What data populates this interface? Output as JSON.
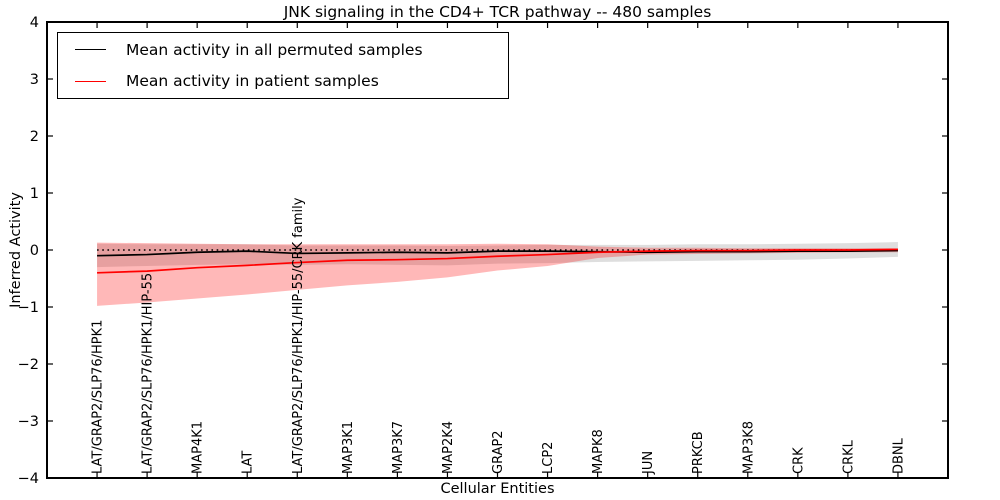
{
  "figure": {
    "title": "JNK signaling in the CD4+ TCR pathway -- 480 samples",
    "xlabel": "Cellular Entities",
    "ylabel": "Inferred Activity"
  },
  "chart_data": {
    "type": "line",
    "title": "JNK signaling in the CD4+ TCR pathway -- 480 samples",
    "xlabel": "Cellular Entities",
    "ylabel": "Inferred Activity",
    "ylim": [
      -4,
      4
    ],
    "y_ticks": [
      4,
      3,
      2,
      1,
      0,
      -1,
      -2,
      -3,
      -4
    ],
    "grid": false,
    "zero_line": 0,
    "legend_position": "upper left",
    "categories": [
      "LAT/GRAP2/SLP76/HPK1",
      "LAT/GRAP2/SLP76/HPK1/HIP-55",
      "MAP4K1",
      "LAT",
      "LAT/GRAP2/SLP76/HPK1/HIP-55/CRK family",
      "MAP3K1",
      "MAP3K7",
      "MAP2K4",
      "GRAP2",
      "LCP2",
      "MAPK8",
      "JUN",
      "PRKCB",
      "MAP3K8",
      "CRK",
      "CRKL",
      "DBNL"
    ],
    "series": [
      {
        "name": "Mean activity in all permuted samples",
        "color": "#000000",
        "band_color": "rgba(0,0,0,0.13)",
        "values": [
          -0.1,
          -0.08,
          -0.04,
          -0.02,
          -0.06,
          -0.05,
          -0.04,
          -0.05,
          -0.02,
          -0.02,
          -0.03,
          -0.04,
          -0.03,
          -0.03,
          -0.02,
          -0.02,
          -0.01
        ],
        "band_top": [
          0.11,
          0.1,
          0.1,
          0.1,
          0.08,
          0.08,
          0.08,
          0.07,
          0.08,
          0.09,
          0.09,
          0.09,
          0.1,
          0.1,
          0.11,
          0.12,
          0.14
        ],
        "band_bottom": [
          -0.3,
          -0.28,
          -0.26,
          -0.25,
          -0.26,
          -0.25,
          -0.26,
          -0.27,
          -0.24,
          -0.23,
          -0.21,
          -0.2,
          -0.19,
          -0.18,
          -0.17,
          -0.15,
          -0.12
        ]
      },
      {
        "name": "Mean activity in patient samples",
        "color": "#ff0000",
        "band_color": "rgba(255,0,0,0.28)",
        "values": [
          -0.4,
          -0.37,
          -0.31,
          -0.27,
          -0.22,
          -0.18,
          -0.17,
          -0.15,
          -0.11,
          -0.08,
          -0.04,
          -0.02,
          -0.01,
          -0.01,
          0.0,
          0.0,
          0.01
        ],
        "band_top": [
          0.13,
          0.12,
          0.11,
          0.1,
          0.1,
          0.1,
          0.1,
          0.1,
          0.11,
          0.1,
          0.06,
          0.04,
          0.04,
          0.03,
          0.03,
          0.03,
          0.03
        ],
        "band_bottom": [
          -0.98,
          -0.92,
          -0.85,
          -0.78,
          -0.7,
          -0.62,
          -0.56,
          -0.48,
          -0.36,
          -0.28,
          -0.14,
          -0.08,
          -0.07,
          -0.06,
          -0.05,
          -0.04,
          -0.04
        ]
      }
    ]
  },
  "legend": {
    "entries": [
      {
        "label": "Mean activity in all permuted samples",
        "color": "#000000"
      },
      {
        "label": "Mean activity in patient samples",
        "color": "#ff0000"
      }
    ]
  }
}
